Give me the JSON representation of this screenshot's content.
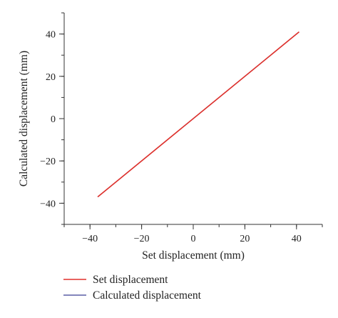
{
  "chart_data": {
    "type": "line",
    "xlabel": "Set displacement (mm)",
    "ylabel": "Calculated displacement (mm)",
    "xlim": [
      -50,
      50
    ],
    "ylim": [
      -50,
      50
    ],
    "x_ticks": [
      -40,
      -20,
      0,
      20,
      40
    ],
    "y_ticks": [
      -40,
      -20,
      0,
      20,
      40
    ],
    "x_tick_labels": [
      "−40",
      "−20",
      "0",
      "20",
      "40"
    ],
    "y_tick_labels": [
      "−40",
      "−20",
      "0",
      "20",
      "40"
    ],
    "minor_tick_step": 10,
    "grid": false,
    "legend_position": "bottom-left, outside plot",
    "series": [
      {
        "name": "Set displacement",
        "color": "#e0312b",
        "x": [
          -37,
          41
        ],
        "y": [
          -37,
          41
        ]
      },
      {
        "name": "Calculated displacement",
        "color": "#5a5fa6",
        "x": [
          -37,
          41
        ],
        "y": [
          -37,
          41
        ]
      }
    ]
  }
}
